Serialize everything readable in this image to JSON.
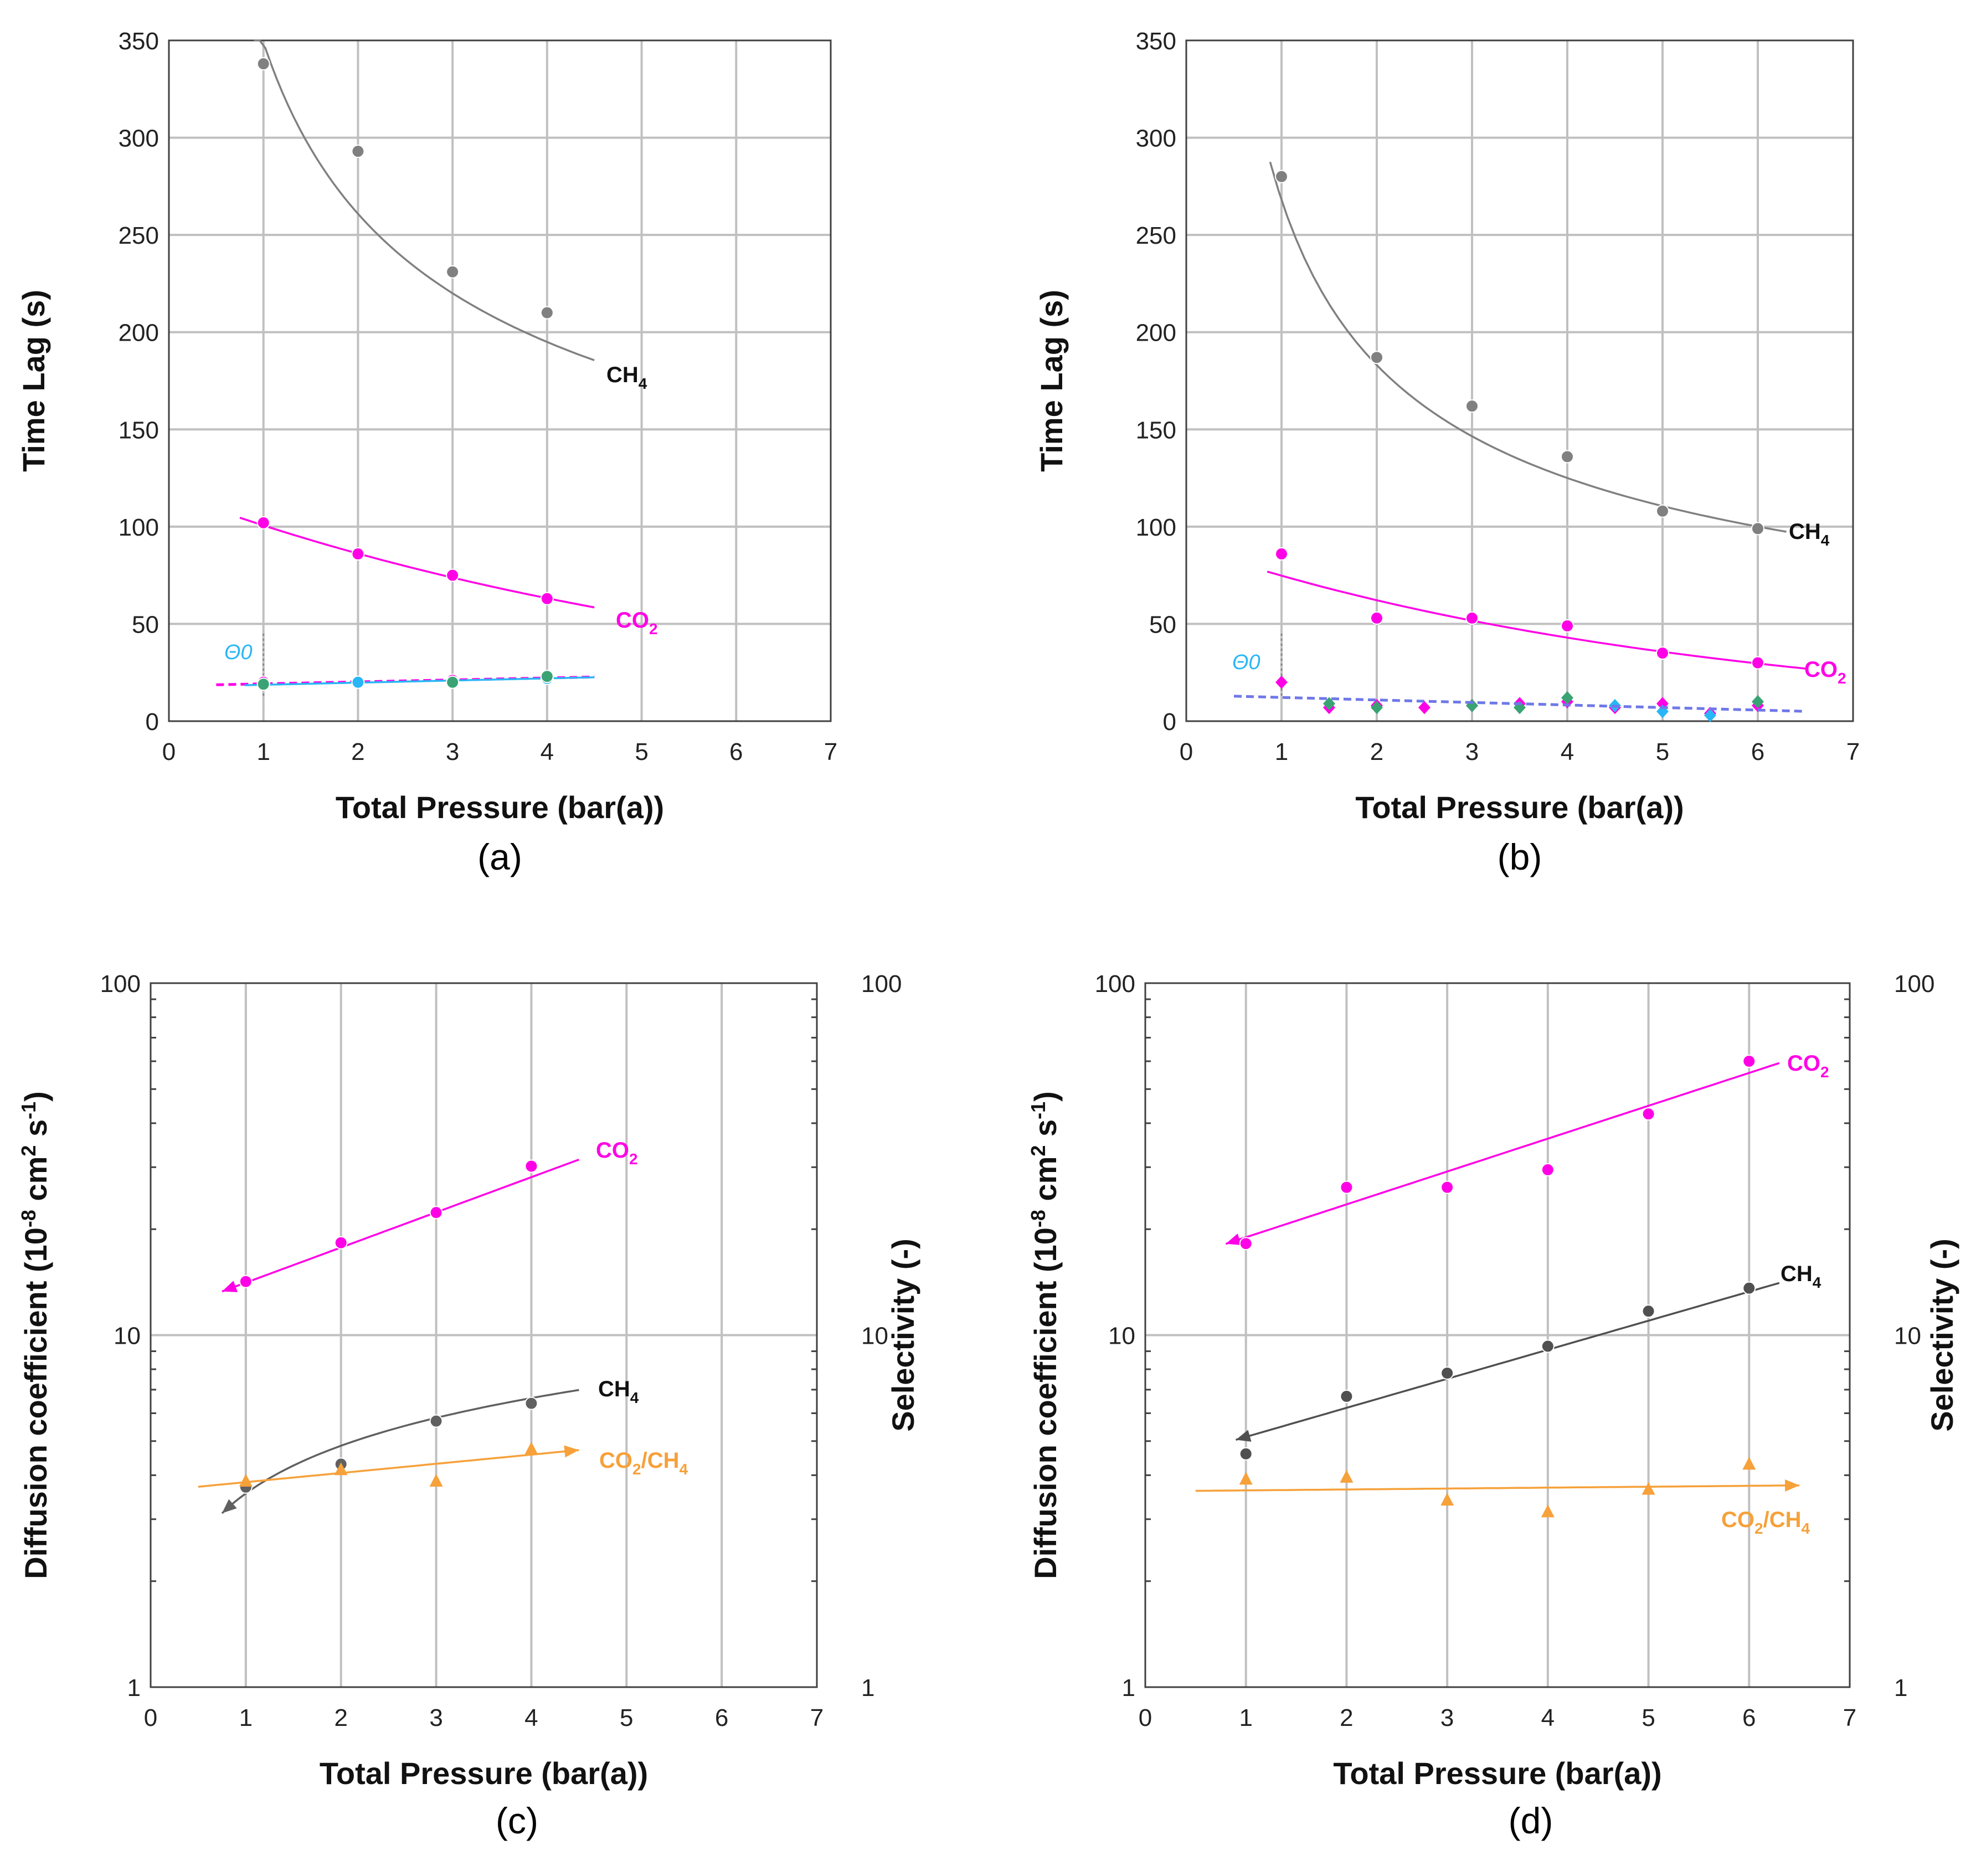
{
  "chart_data": [
    {
      "id": "a",
      "type": "scatter",
      "panel_label": "(a)",
      "xlabel": "Total Pressure (bar(a))",
      "ylabel": "Time Lag (s)",
      "xlim": [
        0,
        7
      ],
      "ylim": [
        0,
        350
      ],
      "yscale": "linear",
      "xticks": [
        "0",
        "1",
        "2",
        "3",
        "4",
        "5",
        "6",
        "7"
      ],
      "yticks": [
        "0",
        "50",
        "100",
        "150",
        "200",
        "250",
        "300",
        "350"
      ],
      "grid": true,
      "theta_label": "Θ0",
      "series": [
        {
          "name": "CH4",
          "label_main": "CH",
          "label_sub": "4",
          "color": "#808080",
          "marker": "circle",
          "points": [
            [
              1,
              338
            ],
            [
              2,
              293
            ],
            [
              3,
              231
            ],
            [
              4,
              210
            ]
          ],
          "fit": {
            "kind": "power",
            "a": 349,
            "b": -0.42,
            "from": 0.9,
            "to": 4.5
          }
        },
        {
          "name": "CO2",
          "label_main": "CO",
          "label_sub": "2",
          "color": "#ff00e6",
          "marker": "circle",
          "points": [
            [
              1,
              102
            ],
            [
              2,
              86
            ],
            [
              3,
              75
            ],
            [
              4,
              63
            ]
          ],
          "fit": {
            "kind": "exp",
            "a": 117.5,
            "b": -0.155,
            "from": 0.75,
            "to": 4.5
          }
        },
        {
          "name": "CO2 θ0",
          "color": "#ff00e6",
          "marker": "circle",
          "points": [
            [
              1,
              20
            ],
            [
              2,
              20
            ],
            [
              3,
              21
            ],
            [
              4,
              22
            ]
          ],
          "fit": {
            "kind": "line",
            "a": 18.2,
            "b": 1.0,
            "from": 0.5,
            "to": 4.5,
            "dashed": true
          }
        },
        {
          "name": "CH4 θ0",
          "color": "#29b6f6",
          "marker": "circle",
          "points": [
            [
              1,
              19
            ],
            [
              2,
              20
            ],
            [
              3,
              20
            ],
            [
              4,
              22
            ]
          ],
          "fit": {
            "kind": "line",
            "a": 17.6,
            "b": 1.1,
            "from": 0.8,
            "to": 4.5
          }
        },
        {
          "name": "θ0 green",
          "color": "#3aa374",
          "marker": "circle",
          "points": [
            [
              1,
              19
            ],
            [
              3,
              20
            ],
            [
              4,
              23
            ]
          ]
        }
      ]
    },
    {
      "id": "b",
      "type": "scatter",
      "panel_label": "(b)",
      "xlabel": "Total Pressure (bar(a))",
      "ylabel": "Time Lag (s)",
      "xlim": [
        0,
        7
      ],
      "ylim": [
        0,
        350
      ],
      "yscale": "linear",
      "xticks": [
        "0",
        "1",
        "2",
        "3",
        "4",
        "5",
        "6",
        "7"
      ],
      "yticks": [
        "0",
        "50",
        "100",
        "150",
        "200",
        "250",
        "300",
        "350"
      ],
      "grid": true,
      "theta_label": "Θ0",
      "series": [
        {
          "name": "CH4",
          "label_main": "CH",
          "label_sub": "4",
          "color": "#808080",
          "marker": "circle",
          "points": [
            [
              1,
              280
            ],
            [
              2,
              187
            ],
            [
              3,
              162
            ],
            [
              4,
              136
            ],
            [
              5,
              108
            ],
            [
              6,
              99
            ]
          ],
          "fit": {
            "kind": "power",
            "a": 268,
            "b": -0.55,
            "from": 0.88,
            "to": 6.3
          }
        },
        {
          "name": "CO2",
          "label_main": "CO",
          "label_sub": "2",
          "color": "#ff00e6",
          "marker": "circle",
          "points": [
            [
              1,
              86
            ],
            [
              2,
              53
            ],
            [
              3,
              53
            ],
            [
              4,
              49
            ],
            [
              5,
              35
            ],
            [
              6,
              30
            ]
          ],
          "fit": {
            "kind": "exp",
            "a": 90,
            "b": -0.185,
            "from": 0.85,
            "to": 6.5
          }
        },
        {
          "name": "θ0 magenta",
          "color": "#ff00e6",
          "marker": "diamond",
          "points": [
            [
              1,
              20
            ],
            [
              1.5,
              7
            ],
            [
              2,
              8
            ],
            [
              2.5,
              7
            ],
            [
              3,
              8
            ],
            [
              3.5,
              9
            ],
            [
              4,
              10
            ],
            [
              4.5,
              7
            ],
            [
              5,
              9
            ],
            [
              5.5,
              4
            ],
            [
              6,
              8
            ]
          ]
        },
        {
          "name": "θ0 green",
          "color": "#3aa374",
          "marker": "diamond",
          "points": [
            [
              1.5,
              9
            ],
            [
              2,
              7
            ],
            [
              3,
              8
            ],
            [
              3.5,
              7
            ],
            [
              4,
              12
            ],
            [
              6,
              10
            ]
          ]
        },
        {
          "name": "θ0 blue",
          "color": "#29b6f6",
          "marker": "diamond",
          "points": [
            [
              4.5,
              8
            ],
            [
              5,
              5
            ],
            [
              5.5,
              3
            ]
          ]
        },
        {
          "name": "θ0 fit",
          "color": "#6f78e8",
          "fit": {
            "kind": "line",
            "a": 13.5,
            "b": -1.3,
            "from": 0.5,
            "to": 6.5,
            "dashed": true
          }
        }
      ]
    },
    {
      "id": "c",
      "type": "scatter",
      "panel_label": "(c)",
      "xlabel": "Total Pressure (bar(a))",
      "ylabel": "Diffusion coefficient (10-8 cm2 s-1)",
      "y2label": "Selectivity (-)",
      "xlim": [
        0,
        7
      ],
      "ylim": [
        1,
        100
      ],
      "yscale": "log",
      "xticks": [
        "0",
        "1",
        "2",
        "3",
        "4",
        "5",
        "6",
        "7"
      ],
      "yticks": [
        "1",
        "10",
        "100"
      ],
      "y2ticks": [
        "1",
        "10",
        "100"
      ],
      "grid": true,
      "series": [
        {
          "name": "CO2",
          "label_main": "CO",
          "label_sub": "2",
          "color": "#ff00e6",
          "marker": "circle",
          "points": [
            [
              1,
              14.2
            ],
            [
              2,
              18.3
            ],
            [
              3,
              22.3
            ],
            [
              4,
              30.2
            ]
          ],
          "fit": {
            "kind": "exp",
            "a": 11.2,
            "b": 0.23,
            "from": 0.75,
            "to": 4.5,
            "arrow": "start"
          }
        },
        {
          "name": "CH4",
          "label_main": "CH",
          "label_sub": "4",
          "color": "#606060",
          "marker": "circle",
          "points": [
            [
              1,
              3.7
            ],
            [
              2,
              4.3
            ],
            [
              3,
              5.7
            ],
            [
              4,
              6.4
            ]
          ],
          "fit": {
            "kind": "power",
            "a": 3.55,
            "b": 0.45,
            "from": 0.75,
            "to": 4.5,
            "arrow": "start"
          }
        },
        {
          "name": "CO2/CH4",
          "label_main": "CO",
          "label_sub": "2",
          "label_tail": "/CH",
          "label_sub2": "4",
          "color": "#f6a13a",
          "marker": "triangle",
          "points": [
            [
              1,
              3.85
            ],
            [
              2,
              4.15
            ],
            [
              3,
              3.85
            ],
            [
              4,
              4.75
            ]
          ],
          "fit": {
            "kind": "exp",
            "a": 3.6,
            "b": 0.06,
            "from": 0.5,
            "to": 4.5,
            "arrow": "end"
          }
        }
      ]
    },
    {
      "id": "d",
      "type": "scatter",
      "panel_label": "(d)",
      "xlabel": "Total Pressure (bar(a))",
      "ylabel": "Diffusion coefficient (10-8 cm2 s-1)",
      "y2label": "Selectivity (-)",
      "xlim": [
        0,
        7
      ],
      "ylim": [
        1,
        100
      ],
      "yscale": "log",
      "xticks": [
        "0",
        "1",
        "2",
        "3",
        "4",
        "5",
        "6",
        "7"
      ],
      "yticks": [
        "1",
        "10",
        "100"
      ],
      "y2ticks": [
        "1",
        "10",
        "100"
      ],
      "grid": true,
      "series": [
        {
          "name": "CO2",
          "label_main": "CO",
          "label_sub": "2",
          "color": "#ff00e6",
          "marker": "circle",
          "points": [
            [
              1,
              18.2
            ],
            [
              2,
              26.3
            ],
            [
              3,
              26.3
            ],
            [
              4,
              29.5
            ],
            [
              5,
              42.5
            ],
            [
              6,
              60
            ]
          ],
          "fit": {
            "kind": "exp",
            "a": 15.3,
            "b": 0.215,
            "from": 0.8,
            "to": 6.3,
            "arrow": "start"
          }
        },
        {
          "name": "CH4",
          "label_main": "CH",
          "label_sub": "4",
          "color": "#505050",
          "marker": "circle",
          "points": [
            [
              1,
              4.6
            ],
            [
              2,
              6.7
            ],
            [
              3,
              7.8
            ],
            [
              4,
              9.3
            ],
            [
              5,
              11.7
            ],
            [
              6,
              13.6
            ]
          ],
          "fit": {
            "kind": "exp",
            "a": 4.25,
            "b": 0.19,
            "from": 0.9,
            "to": 6.3,
            "arrow": "start"
          }
        },
        {
          "name": "CO2/CH4",
          "label_main": "CO",
          "label_sub": "2",
          "label_tail": "/CH",
          "label_sub2": "4",
          "color": "#f6a13a",
          "marker": "triangle",
          "points": [
            [
              1,
              3.9
            ],
            [
              2,
              3.95
            ],
            [
              3,
              3.4
            ],
            [
              4,
              3.15
            ],
            [
              5,
              3.65
            ],
            [
              6,
              4.3
            ]
          ],
          "fit": {
            "kind": "exp",
            "a": 3.6,
            "b": 0.006,
            "from": 0.5,
            "to": 6.5,
            "arrow": "end"
          }
        }
      ]
    }
  ]
}
